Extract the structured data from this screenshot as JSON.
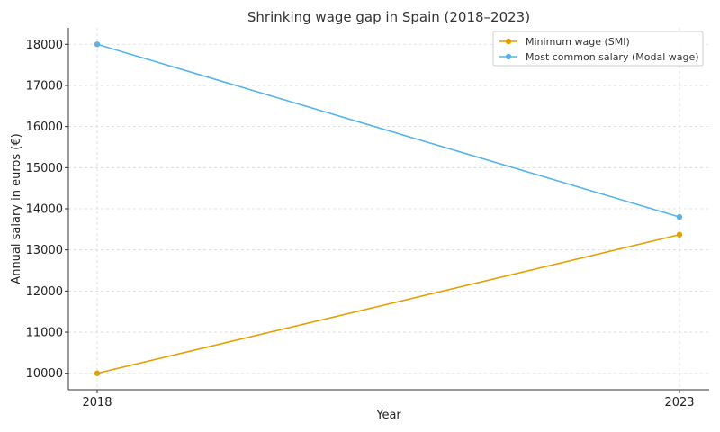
{
  "chart_data": {
    "type": "line",
    "title": "Shrinking wage gap in Spain (2018–2023)",
    "xlabel": "Year",
    "ylabel": "Annual salary in euros (€)",
    "x": [
      "2018",
      "2023"
    ],
    "ylim": [
      9600,
      18400
    ],
    "yticks": [
      10000,
      11000,
      12000,
      13000,
      14000,
      15000,
      16000,
      17000,
      18000
    ],
    "grid": true,
    "legend_position": "top-right",
    "series": [
      {
        "name": "Minimum wage (SMI)",
        "values": [
          10000,
          13370
        ],
        "color": "#E69F00"
      },
      {
        "name": "Most common salary (Modal wage)",
        "values": [
          18000,
          13800
        ],
        "color": "#56B4E9"
      }
    ]
  }
}
